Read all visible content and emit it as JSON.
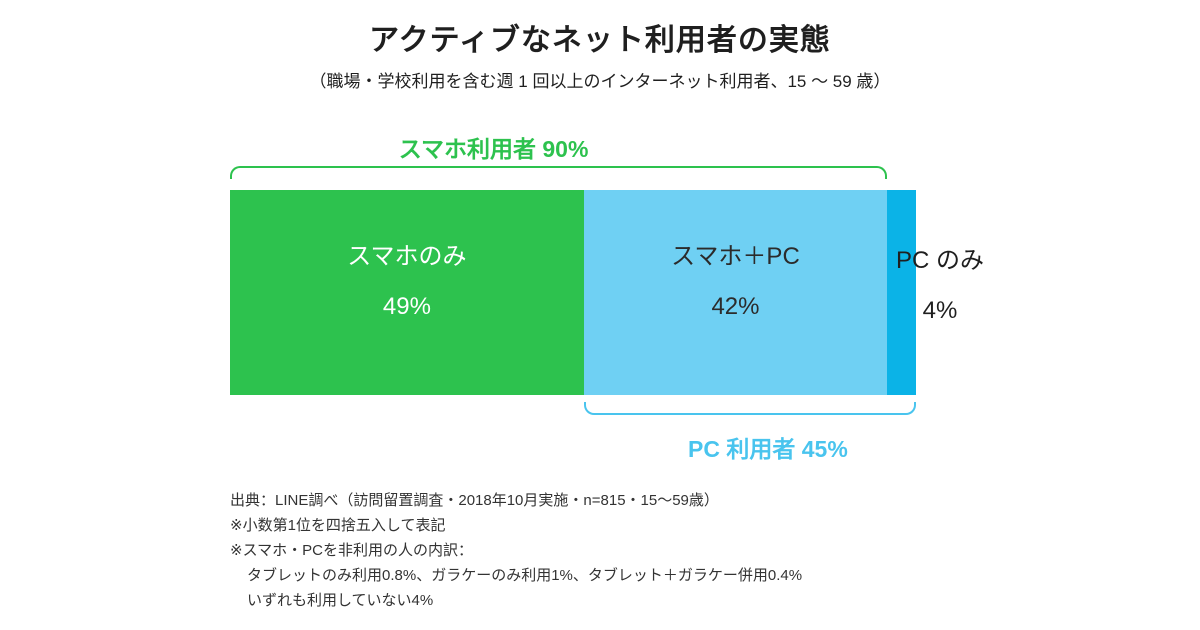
{
  "chart_data": {
    "type": "bar",
    "variant": "horizontal-stacked-percentage",
    "title": "アクティブなネット利用者の実態",
    "subtitle": "（職場・学校利用を含む週 1 回以上のインターネット利用者、15 ～ 59 歳）",
    "unit": "%",
    "segments": [
      {
        "label": "スマホのみ",
        "value": 49,
        "value_label": "49%",
        "color": "#2dc24e",
        "text_color": "#ffffff"
      },
      {
        "label": "スマホ＋PC",
        "value": 42,
        "value_label": "42%",
        "color": "#6fd0f3",
        "text_color": "#2b2b2b"
      },
      {
        "label": "PC のみ",
        "value": 4,
        "value_label": "4%",
        "color": "#0bb3e7",
        "text_color": "#1f1f1f"
      }
    ],
    "brackets": [
      {
        "label": "スマホ利用者 90%",
        "value": 90,
        "position": "top",
        "covers": [
          "スマホのみ",
          "スマホ＋PC"
        ],
        "color": "#2dc24e"
      },
      {
        "label": "PC 利用者 45%",
        "value": 45,
        "position": "bottom",
        "covers": [
          "スマホ＋PC",
          "PC のみ"
        ],
        "color": "#49c4ee"
      }
    ]
  },
  "footnotes": {
    "lines": [
      {
        "text": "出典：LINE調べ（訪問留置調査・2018年10月実施・n=815・15～59歳）",
        "indent": false
      },
      {
        "text": "※小数第1位を四捨五入して表記",
        "indent": false
      },
      {
        "text": "※スマホ・PCを非利用の人の内訳：",
        "indent": false
      },
      {
        "text": "タブレットのみ利用0.8%、ガラケーのみ利用1%、タブレット＋ガラケー併用0.4%",
        "indent": true
      },
      {
        "text": "いずれも利用していない4%",
        "indent": true
      }
    ]
  }
}
